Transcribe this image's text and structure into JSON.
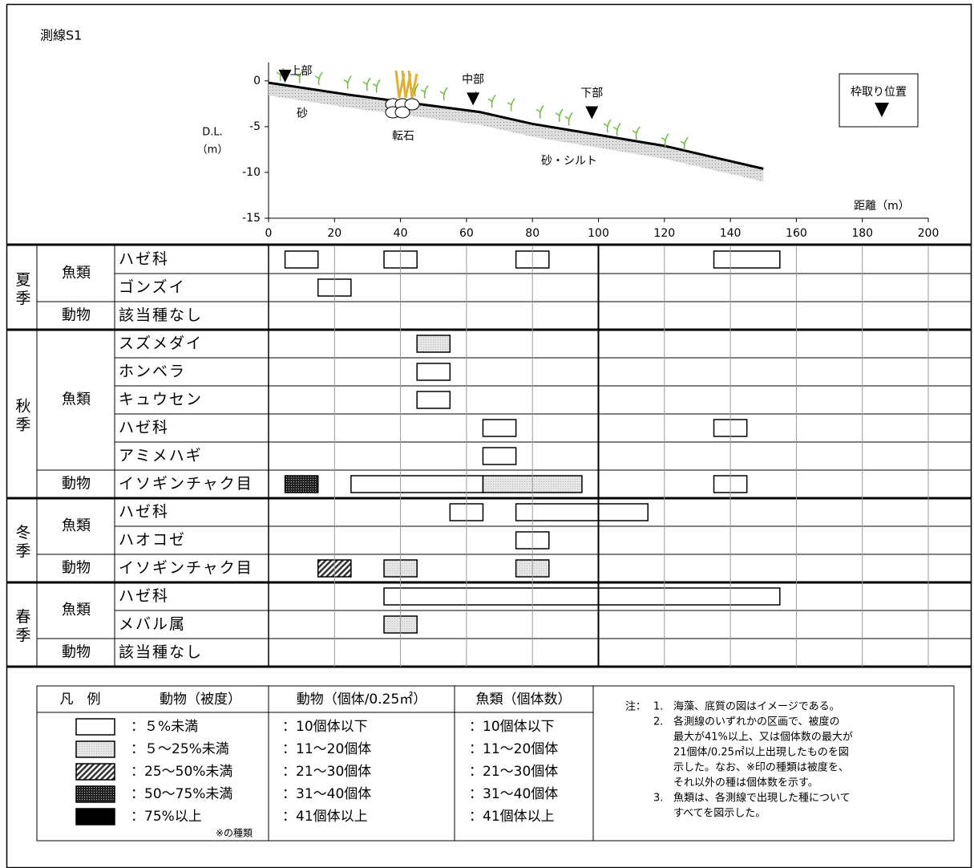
{
  "title": "測線S1",
  "profile": {
    "y_label": [
      "D.L.",
      "（m）"
    ],
    "x_label": "距離（m）",
    "xlim": [
      0,
      200
    ],
    "xticks": [
      0,
      20,
      40,
      60,
      80,
      100,
      120,
      140,
      160,
      180,
      200
    ],
    "ylim": [
      -15,
      2
    ],
    "yticks": [
      0,
      -5,
      -10,
      -15
    ],
    "seabed": {
      "x": [
        0,
        24,
        45,
        64,
        80,
        100,
        120,
        150
      ],
      "y": [
        -0.2,
        -1.5,
        -2.5,
        -3.4,
        -4.7,
        -5.9,
        -7.1,
        -9.6
      ]
    },
    "substrate_labels": [
      "砂",
      "転石",
      "砂・シルト"
    ],
    "stations": [
      {
        "label": "上部",
        "x": 5,
        "y": 0
      },
      {
        "label": "中部",
        "x": 62,
        "y": -2.5
      },
      {
        "label": "下部",
        "x": 98,
        "y": -4
      }
    ],
    "station_legend": "枠取り位置"
  },
  "table": {
    "seasons": [
      {
        "name": "夏季",
        "groups": [
          {
            "name": "魚類",
            "species": [
              {
                "name": "ハゼ科",
                "bars": [
                  {
                    "from": 5,
                    "to": 15,
                    "level": 0
                  },
                  {
                    "from": 35,
                    "to": 45,
                    "level": 0
                  },
                  {
                    "from": 75,
                    "to": 85,
                    "level": 0
                  },
                  {
                    "from": 135,
                    "to": 155,
                    "level": 0
                  }
                ]
              },
              {
                "name": "ゴンズイ",
                "bars": [
                  {
                    "from": 15,
                    "to": 25,
                    "level": 0
                  }
                ]
              }
            ]
          },
          {
            "name": "動物",
            "species": [
              {
                "name": "該当種なし",
                "bars": []
              }
            ]
          }
        ]
      },
      {
        "name": "秋季",
        "groups": [
          {
            "name": "魚類",
            "species": [
              {
                "name": "スズメダイ",
                "bars": [
                  {
                    "from": 45,
                    "to": 55,
                    "level": 1
                  }
                ]
              },
              {
                "name": "ホンベラ",
                "bars": [
                  {
                    "from": 45,
                    "to": 55,
                    "level": 0
                  }
                ]
              },
              {
                "name": "キュウセン",
                "bars": [
                  {
                    "from": 45,
                    "to": 55,
                    "level": 0
                  }
                ]
              },
              {
                "name": "ハゼ科",
                "bars": [
                  {
                    "from": 65,
                    "to": 75,
                    "level": 0
                  },
                  {
                    "from": 135,
                    "to": 145,
                    "level": 0
                  }
                ]
              },
              {
                "name": "アミメハギ",
                "bars": [
                  {
                    "from": 65,
                    "to": 75,
                    "level": 0
                  }
                ]
              }
            ]
          },
          {
            "name": "動物",
            "species": [
              {
                "name": "イソギンチャク目",
                "bars": [
                  {
                    "from": 5,
                    "to": 15,
                    "level": 3
                  },
                  {
                    "from": 25,
                    "to": 65,
                    "level": 0
                  },
                  {
                    "from": 65,
                    "to": 95,
                    "level": 1
                  },
                  {
                    "from": 135,
                    "to": 145,
                    "level": 0
                  }
                ]
              }
            ]
          }
        ]
      },
      {
        "name": "冬季",
        "groups": [
          {
            "name": "魚類",
            "species": [
              {
                "name": "ハゼ科",
                "bars": [
                  {
                    "from": 55,
                    "to": 65,
                    "level": 0
                  },
                  {
                    "from": 75,
                    "to": 115,
                    "level": 0
                  }
                ]
              },
              {
                "name": "ハオコゼ",
                "bars": [
                  {
                    "from": 75,
                    "to": 85,
                    "level": 0
                  }
                ]
              }
            ]
          },
          {
            "name": "動物",
            "species": [
              {
                "name": "イソギンチャク目",
                "bars": [
                  {
                    "from": 15,
                    "to": 25,
                    "level": 2
                  },
                  {
                    "from": 35,
                    "to": 45,
                    "level": 1
                  },
                  {
                    "from": 75,
                    "to": 85,
                    "level": 1
                  }
                ]
              }
            ]
          }
        ]
      },
      {
        "name": "春季",
        "groups": [
          {
            "name": "魚類",
            "species": [
              {
                "name": "ハゼ科",
                "bars": [
                  {
                    "from": 35,
                    "to": 155,
                    "level": 0
                  }
                ]
              },
              {
                "name": "メバル属",
                "bars": [
                  {
                    "from": 35,
                    "to": 45,
                    "level": 1
                  }
                ]
              }
            ]
          },
          {
            "name": "動物",
            "species": [
              {
                "name": "該当種なし",
                "bars": []
              }
            ]
          }
        ]
      }
    ]
  },
  "legend": {
    "header": [
      "凡　例",
      "動物（被度）",
      "動物（個体/0.25㎡）",
      "魚類（個体数）"
    ],
    "rows": [
      [
        "：５%未満",
        "：10個体以下",
        "：10個体以下"
      ],
      [
        "：５～25%未満",
        "：11～20個体",
        "：11～20個体"
      ],
      [
        "：25～50%未満",
        "：21～30個体",
        "：21～30個体"
      ],
      [
        "：50～75%未満",
        "：31～40個体",
        "：31～40個体"
      ],
      [
        "：75%以上",
        "：41個体以上",
        "：41個体以上"
      ]
    ],
    "note_mark": "※の種類",
    "notes_prefix": "注：",
    "notes": [
      {
        "num": "1.",
        "lines": [
          "海藻、底質の図はイメージである。"
        ]
      },
      {
        "num": "2.",
        "lines": [
          "各測線のいずれかの区画で、被度の",
          "最大が41%以上、又は個体数の最大が",
          "21個体/0.25㎡以上出現したものを図",
          "示した。なお、※印の種類は被度を、",
          "それ以外の種は個体数を示す。"
        ]
      },
      {
        "num": "3.",
        "lines": [
          "魚類は、各測線で出現した種について",
          "すべてを図示した。"
        ]
      }
    ]
  }
}
